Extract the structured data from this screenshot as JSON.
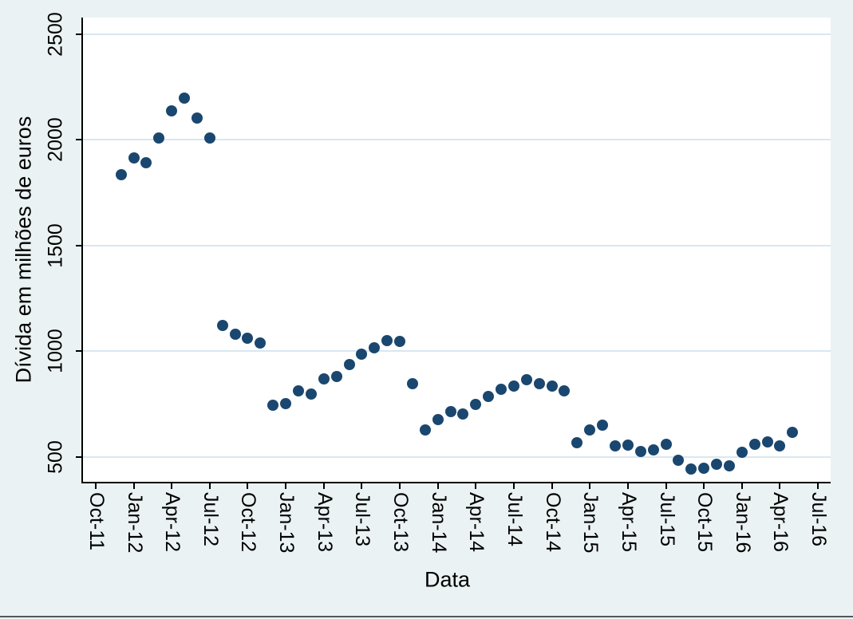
{
  "figure": {
    "background_color": "#EAF2F3",
    "plot_background_color": "#FFFFFF",
    "gridline_color": "#D9E7F1",
    "axis_color": "#000000",
    "marker_color": "#1A476F",
    "bottom_border_color": "#55565A"
  },
  "chart_data": {
    "type": "scatter",
    "title": "",
    "xlabel": "Data",
    "ylabel": "Dívida em milhões de euros",
    "legend": "none",
    "grid": "horizontal only",
    "x_tick_labels": [
      "Oct-11",
      "Jan-12",
      "Apr-12",
      "Jul-12",
      "Oct-12",
      "Jan-13",
      "Apr-13",
      "Jul-13",
      "Oct-13",
      "Jan-14",
      "Apr-14",
      "Jul-14",
      "Oct-14",
      "Jan-15",
      "Apr-15",
      "Jul-15",
      "Oct-15",
      "Jan-16",
      "Apr-16",
      "Jul-16"
    ],
    "x_tick_step_months": 3,
    "x_domain_month_index": [
      -1,
      58
    ],
    "y_ticks": [
      500,
      1000,
      1500,
      2000,
      2500
    ],
    "y_domain": [
      382,
      2578
    ],
    "points": [
      {
        "date": "Dec-11",
        "value": 1835
      },
      {
        "date": "Jan-12",
        "value": 1915
      },
      {
        "date": "Feb-12",
        "value": 1890
      },
      {
        "date": "Mar-12",
        "value": 2007
      },
      {
        "date": "Apr-12",
        "value": 2136
      },
      {
        "date": "May-12",
        "value": 2197
      },
      {
        "date": "Jun-12",
        "value": 2101
      },
      {
        "date": "Jul-12",
        "value": 2008
      },
      {
        "date": "Aug-12",
        "value": 1122
      },
      {
        "date": "Sep-12",
        "value": 1080
      },
      {
        "date": "Oct-12",
        "value": 1062
      },
      {
        "date": "Nov-12",
        "value": 1040
      },
      {
        "date": "Dec-12",
        "value": 744
      },
      {
        "date": "Jan-13",
        "value": 751
      },
      {
        "date": "Feb-13",
        "value": 814
      },
      {
        "date": "Mar-13",
        "value": 797
      },
      {
        "date": "Apr-13",
        "value": 869
      },
      {
        "date": "May-13",
        "value": 879
      },
      {
        "date": "Jun-13",
        "value": 936
      },
      {
        "date": "Jul-13",
        "value": 987
      },
      {
        "date": "Aug-13",
        "value": 1016
      },
      {
        "date": "Sep-13",
        "value": 1051
      },
      {
        "date": "Oct-13",
        "value": 1045
      },
      {
        "date": "Nov-13",
        "value": 847
      },
      {
        "date": "Dec-13",
        "value": 629
      },
      {
        "date": "Jan-14",
        "value": 675
      },
      {
        "date": "Feb-14",
        "value": 713
      },
      {
        "date": "Mar-14",
        "value": 704
      },
      {
        "date": "Apr-14",
        "value": 749
      },
      {
        "date": "May-14",
        "value": 785
      },
      {
        "date": "Jun-14",
        "value": 819
      },
      {
        "date": "Jul-14",
        "value": 835
      },
      {
        "date": "Aug-14",
        "value": 866
      },
      {
        "date": "Sep-14",
        "value": 846
      },
      {
        "date": "Oct-14",
        "value": 834
      },
      {
        "date": "Nov-14",
        "value": 811
      },
      {
        "date": "Dec-14",
        "value": 566
      },
      {
        "date": "Jan-15",
        "value": 627
      },
      {
        "date": "Feb-15",
        "value": 649
      },
      {
        "date": "Mar-15",
        "value": 553
      },
      {
        "date": "Apr-15",
        "value": 555
      },
      {
        "date": "May-15",
        "value": 524
      },
      {
        "date": "Jun-15",
        "value": 533
      },
      {
        "date": "Jul-15",
        "value": 559
      },
      {
        "date": "Aug-15",
        "value": 485
      },
      {
        "date": "Sep-15",
        "value": 444
      },
      {
        "date": "Oct-15",
        "value": 447
      },
      {
        "date": "Nov-15",
        "value": 464
      },
      {
        "date": "Dec-15",
        "value": 456
      },
      {
        "date": "Jan-16",
        "value": 523
      },
      {
        "date": "Feb-16",
        "value": 559
      },
      {
        "date": "Mar-16",
        "value": 571
      },
      {
        "date": "Apr-16",
        "value": 552
      },
      {
        "date": "May-16",
        "value": 616
      }
    ]
  }
}
